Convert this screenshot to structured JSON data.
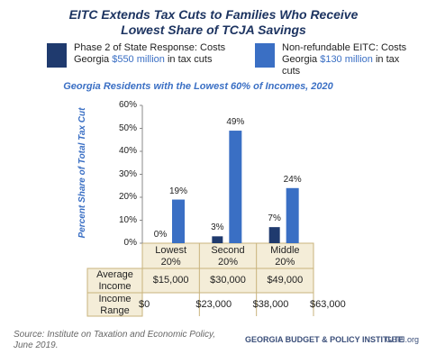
{
  "chart_data": {
    "type": "bar",
    "title": [
      "EITC Extends Tax Cuts to Families Who Receive",
      "Lowest Share of TCJA Savings"
    ],
    "subtitle": "Georgia Residents with the Lowest 60% of Incomes, 2020",
    "y_label": "Percent Share of Total Tax Cut",
    "categories": [
      "Lowest 20%",
      "Second 20%",
      "Middle 20%"
    ],
    "series": [
      {
        "name": "Phase 2 of State Response: Costs Georgia $550 million in tax cuts",
        "highlight": "$550 million",
        "color": "#1f3a6e",
        "values": [
          0,
          3,
          7
        ],
        "value_labels": [
          "0%",
          "3%",
          "7%"
        ]
      },
      {
        "name": "Non-refundable EITC: Costs Georgia $130 million in tax cuts",
        "highlight": "$130 million",
        "color": "#3a6fc4",
        "values": [
          19,
          49,
          24
        ],
        "value_labels": [
          "19%",
          "49%",
          "24%"
        ]
      }
    ],
    "ylim": [
      0,
      60
    ],
    "yticks": [
      {
        "value": 0,
        "label": "0%"
      },
      {
        "value": 10,
        "label": "10%"
      },
      {
        "value": 20,
        "label": "20%"
      },
      {
        "value": 30,
        "label": "30%"
      },
      {
        "value": 40,
        "label": "40%"
      },
      {
        "value": 50,
        "label": "50%"
      },
      {
        "value": 60,
        "label": "60%"
      }
    ],
    "table": {
      "rows": [
        {
          "label": "Average Income",
          "values": [
            "$15,000",
            "$30,000",
            "$49,000"
          ]
        },
        {
          "label": "Income Range",
          "values": [
            "$0",
            "$23,000",
            "$38,000",
            "$63,000"
          ]
        }
      ]
    },
    "source": "Source: Institute on Taxation and Economic Policy, June 2019.",
    "logo": [
      "GEORGIA BUDGET & POLICY INSTITUTE",
      "GBPI.org"
    ]
  }
}
